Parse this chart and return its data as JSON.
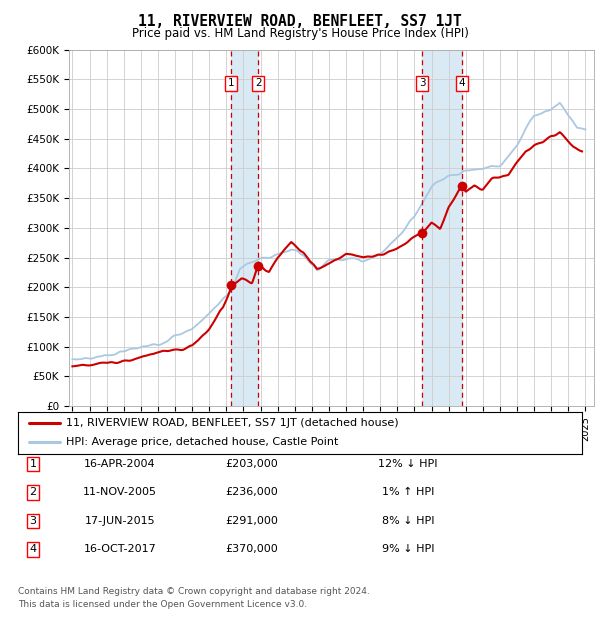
{
  "title": "11, RIVERVIEW ROAD, BENFLEET, SS7 1JT",
  "subtitle": "Price paid vs. HM Land Registry's House Price Index (HPI)",
  "ylabel_ticks": [
    "£0",
    "£50K",
    "£100K",
    "£150K",
    "£200K",
    "£250K",
    "£300K",
    "£350K",
    "£400K",
    "£450K",
    "£500K",
    "£550K",
    "£600K"
  ],
  "ytick_values": [
    0,
    50000,
    100000,
    150000,
    200000,
    250000,
    300000,
    350000,
    400000,
    450000,
    500000,
    550000,
    600000
  ],
  "xmin": 1994.8,
  "xmax": 2025.5,
  "ymin": 0,
  "ymax": 600000,
  "purchase_markers": [
    {
      "year": 2004.29,
      "price": 203000,
      "label": "1"
    },
    {
      "year": 2005.86,
      "price": 236000,
      "label": "2"
    },
    {
      "year": 2015.46,
      "price": 291000,
      "label": "3"
    },
    {
      "year": 2017.79,
      "price": 370000,
      "label": "4"
    }
  ],
  "vline_pairs": [
    [
      2004.29,
      2005.86
    ],
    [
      2015.46,
      2017.79
    ]
  ],
  "legend_line1": "11, RIVERVIEW ROAD, BENFLEET, SS7 1JT (detached house)",
  "legend_line2": "HPI: Average price, detached house, Castle Point",
  "table_rows": [
    {
      "num": "1",
      "date": "16-APR-2004",
      "price": "£203,000",
      "rel": "12% ↓ HPI"
    },
    {
      "num": "2",
      "date": "11-NOV-2005",
      "price": "£236,000",
      "rel": "1% ↑ HPI"
    },
    {
      "num": "3",
      "date": "17-JUN-2015",
      "price": "£291,000",
      "rel": "8% ↓ HPI"
    },
    {
      "num": "4",
      "date": "16-OCT-2017",
      "price": "£370,000",
      "rel": "9% ↓ HPI"
    }
  ],
  "footnote1": "Contains HM Land Registry data © Crown copyright and database right 2024.",
  "footnote2": "This data is licensed under the Open Government Licence v3.0.",
  "hpi_color": "#abc8e2",
  "price_color": "#cc0000",
  "shade_color": "#daeaf5",
  "marker_color": "#cc0000",
  "grid_color": "#cccccc",
  "bg_color": "#ffffff",
  "hpi_anchors_x": [
    1995.0,
    1997.0,
    1998.5,
    2000.0,
    2002.0,
    2003.5,
    2004.3,
    2004.8,
    2005.5,
    2006.5,
    2007.8,
    2008.5,
    2009.3,
    2010.0,
    2011.0,
    2012.0,
    2013.0,
    2014.0,
    2015.0,
    2016.0,
    2017.0,
    2018.0,
    2019.0,
    2020.0,
    2021.0,
    2022.0,
    2023.0,
    2023.5,
    2024.0,
    2024.5,
    2025.0
  ],
  "hpi_anchors_y": [
    78000,
    85000,
    95000,
    105000,
    130000,
    170000,
    195000,
    230000,
    245000,
    250000,
    265000,
    255000,
    230000,
    245000,
    250000,
    245000,
    255000,
    285000,
    320000,
    370000,
    385000,
    395000,
    400000,
    405000,
    440000,
    490000,
    500000,
    510000,
    490000,
    470000,
    465000
  ],
  "price_anchors_x": [
    1995.0,
    1997.0,
    1998.5,
    2000.0,
    2001.5,
    2002.0,
    2003.0,
    2003.8,
    2004.29,
    2004.9,
    2005.5,
    2005.86,
    2006.5,
    2007.0,
    2007.8,
    2008.5,
    2009.3,
    2010.0,
    2011.0,
    2012.0,
    2013.0,
    2014.0,
    2015.0,
    2015.46,
    2016.0,
    2016.5,
    2017.0,
    2017.79,
    2018.0,
    2018.5,
    2019.0,
    2019.5,
    2020.0,
    2020.5,
    2021.0,
    2021.5,
    2022.0,
    2022.5,
    2023.0,
    2023.5,
    2024.0,
    2024.3,
    2024.8
  ],
  "price_anchors_y": [
    68000,
    72000,
    78000,
    90000,
    95000,
    100000,
    130000,
    165000,
    203000,
    215000,
    210000,
    236000,
    225000,
    250000,
    275000,
    260000,
    230000,
    240000,
    255000,
    250000,
    255000,
    265000,
    285000,
    291000,
    310000,
    300000,
    335000,
    370000,
    360000,
    370000,
    365000,
    380000,
    385000,
    390000,
    410000,
    430000,
    440000,
    445000,
    455000,
    460000,
    445000,
    435000,
    430000
  ]
}
